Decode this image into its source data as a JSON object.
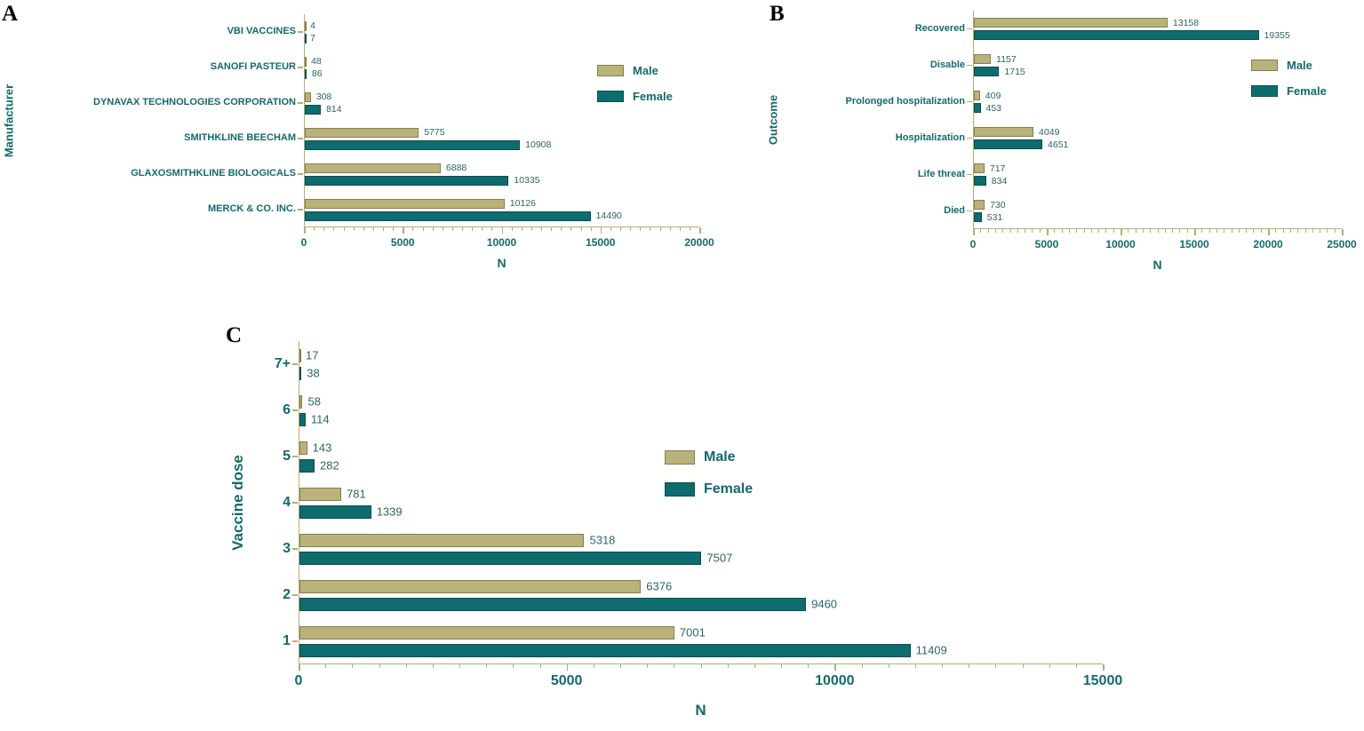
{
  "figure": {
    "background": "#ffffff",
    "colors": {
      "male": "#b9b27a",
      "male_border": "#857f4e",
      "female": "#0e6b6e",
      "female_border": "#0a4f52",
      "axis": "#b5ae74",
      "label_text": "#15696c",
      "value_text": "#2f6365",
      "panel_letter": "#000000"
    }
  },
  "chart_data": [
    {
      "id": "A",
      "type": "bar",
      "orientation": "horizontal",
      "panel_label": "A",
      "xlabel": "N",
      "ylabel": "Manufacturer",
      "categories": [
        "VBI VACCINES",
        "SANOFI PASTEUR",
        "DYNAVAX TECHNOLOGIES CORPORATION",
        "SMITHKLINE BEECHAM",
        "GLAXOSMITHKLINE BIOLOGICALS",
        "MERCK & CO. INC."
      ],
      "series": [
        {
          "name": "Male",
          "values": [
            4,
            48,
            308,
            5775,
            6888,
            10126
          ]
        },
        {
          "name": "Female",
          "values": [
            7,
            86,
            814,
            10908,
            10335,
            14490
          ]
        }
      ],
      "xlim": [
        0,
        20000
      ],
      "xticks": [
        0,
        5000,
        10000,
        15000,
        20000
      ],
      "minor_tick_step": 500,
      "grid": false,
      "legend": {
        "entries": [
          "Male",
          "Female"
        ],
        "position": "upper-right"
      }
    },
    {
      "id": "B",
      "type": "bar",
      "orientation": "horizontal",
      "panel_label": "B",
      "xlabel": "N",
      "ylabel": "Outcome",
      "categories": [
        "Recovered",
        "Disable",
        "Prolonged hospitalization",
        "Hospitalization",
        "Life threat",
        "Died"
      ],
      "series": [
        {
          "name": "Male",
          "values": [
            13158,
            1157,
            409,
            4049,
            717,
            730
          ]
        },
        {
          "name": "Female",
          "values": [
            19355,
            1715,
            453,
            4651,
            834,
            531
          ]
        }
      ],
      "xlim": [
        0,
        25000
      ],
      "xticks": [
        0,
        5000,
        10000,
        15000,
        20000,
        25000
      ],
      "minor_tick_step": 500,
      "grid": false,
      "legend": {
        "entries": [
          "Male",
          "Female"
        ],
        "position": "upper-right"
      }
    },
    {
      "id": "C",
      "type": "bar",
      "orientation": "horizontal",
      "panel_label": "C",
      "xlabel": "N",
      "ylabel": "Vaccine dose",
      "categories": [
        "7+",
        "6",
        "5",
        "4",
        "3",
        "2",
        "1"
      ],
      "series": [
        {
          "name": "Male",
          "values": [
            17,
            58,
            143,
            781,
            5318,
            6376,
            7001
          ]
        },
        {
          "name": "Female",
          "values": [
            38,
            114,
            282,
            1339,
            7507,
            9460,
            11409
          ]
        }
      ],
      "xlim": [
        0,
        15000
      ],
      "xticks": [
        0,
        5000,
        10000,
        15000
      ],
      "minor_tick_step": 500,
      "grid": false,
      "legend": {
        "entries": [
          "Male",
          "Female"
        ],
        "position": "center-right"
      }
    }
  ]
}
